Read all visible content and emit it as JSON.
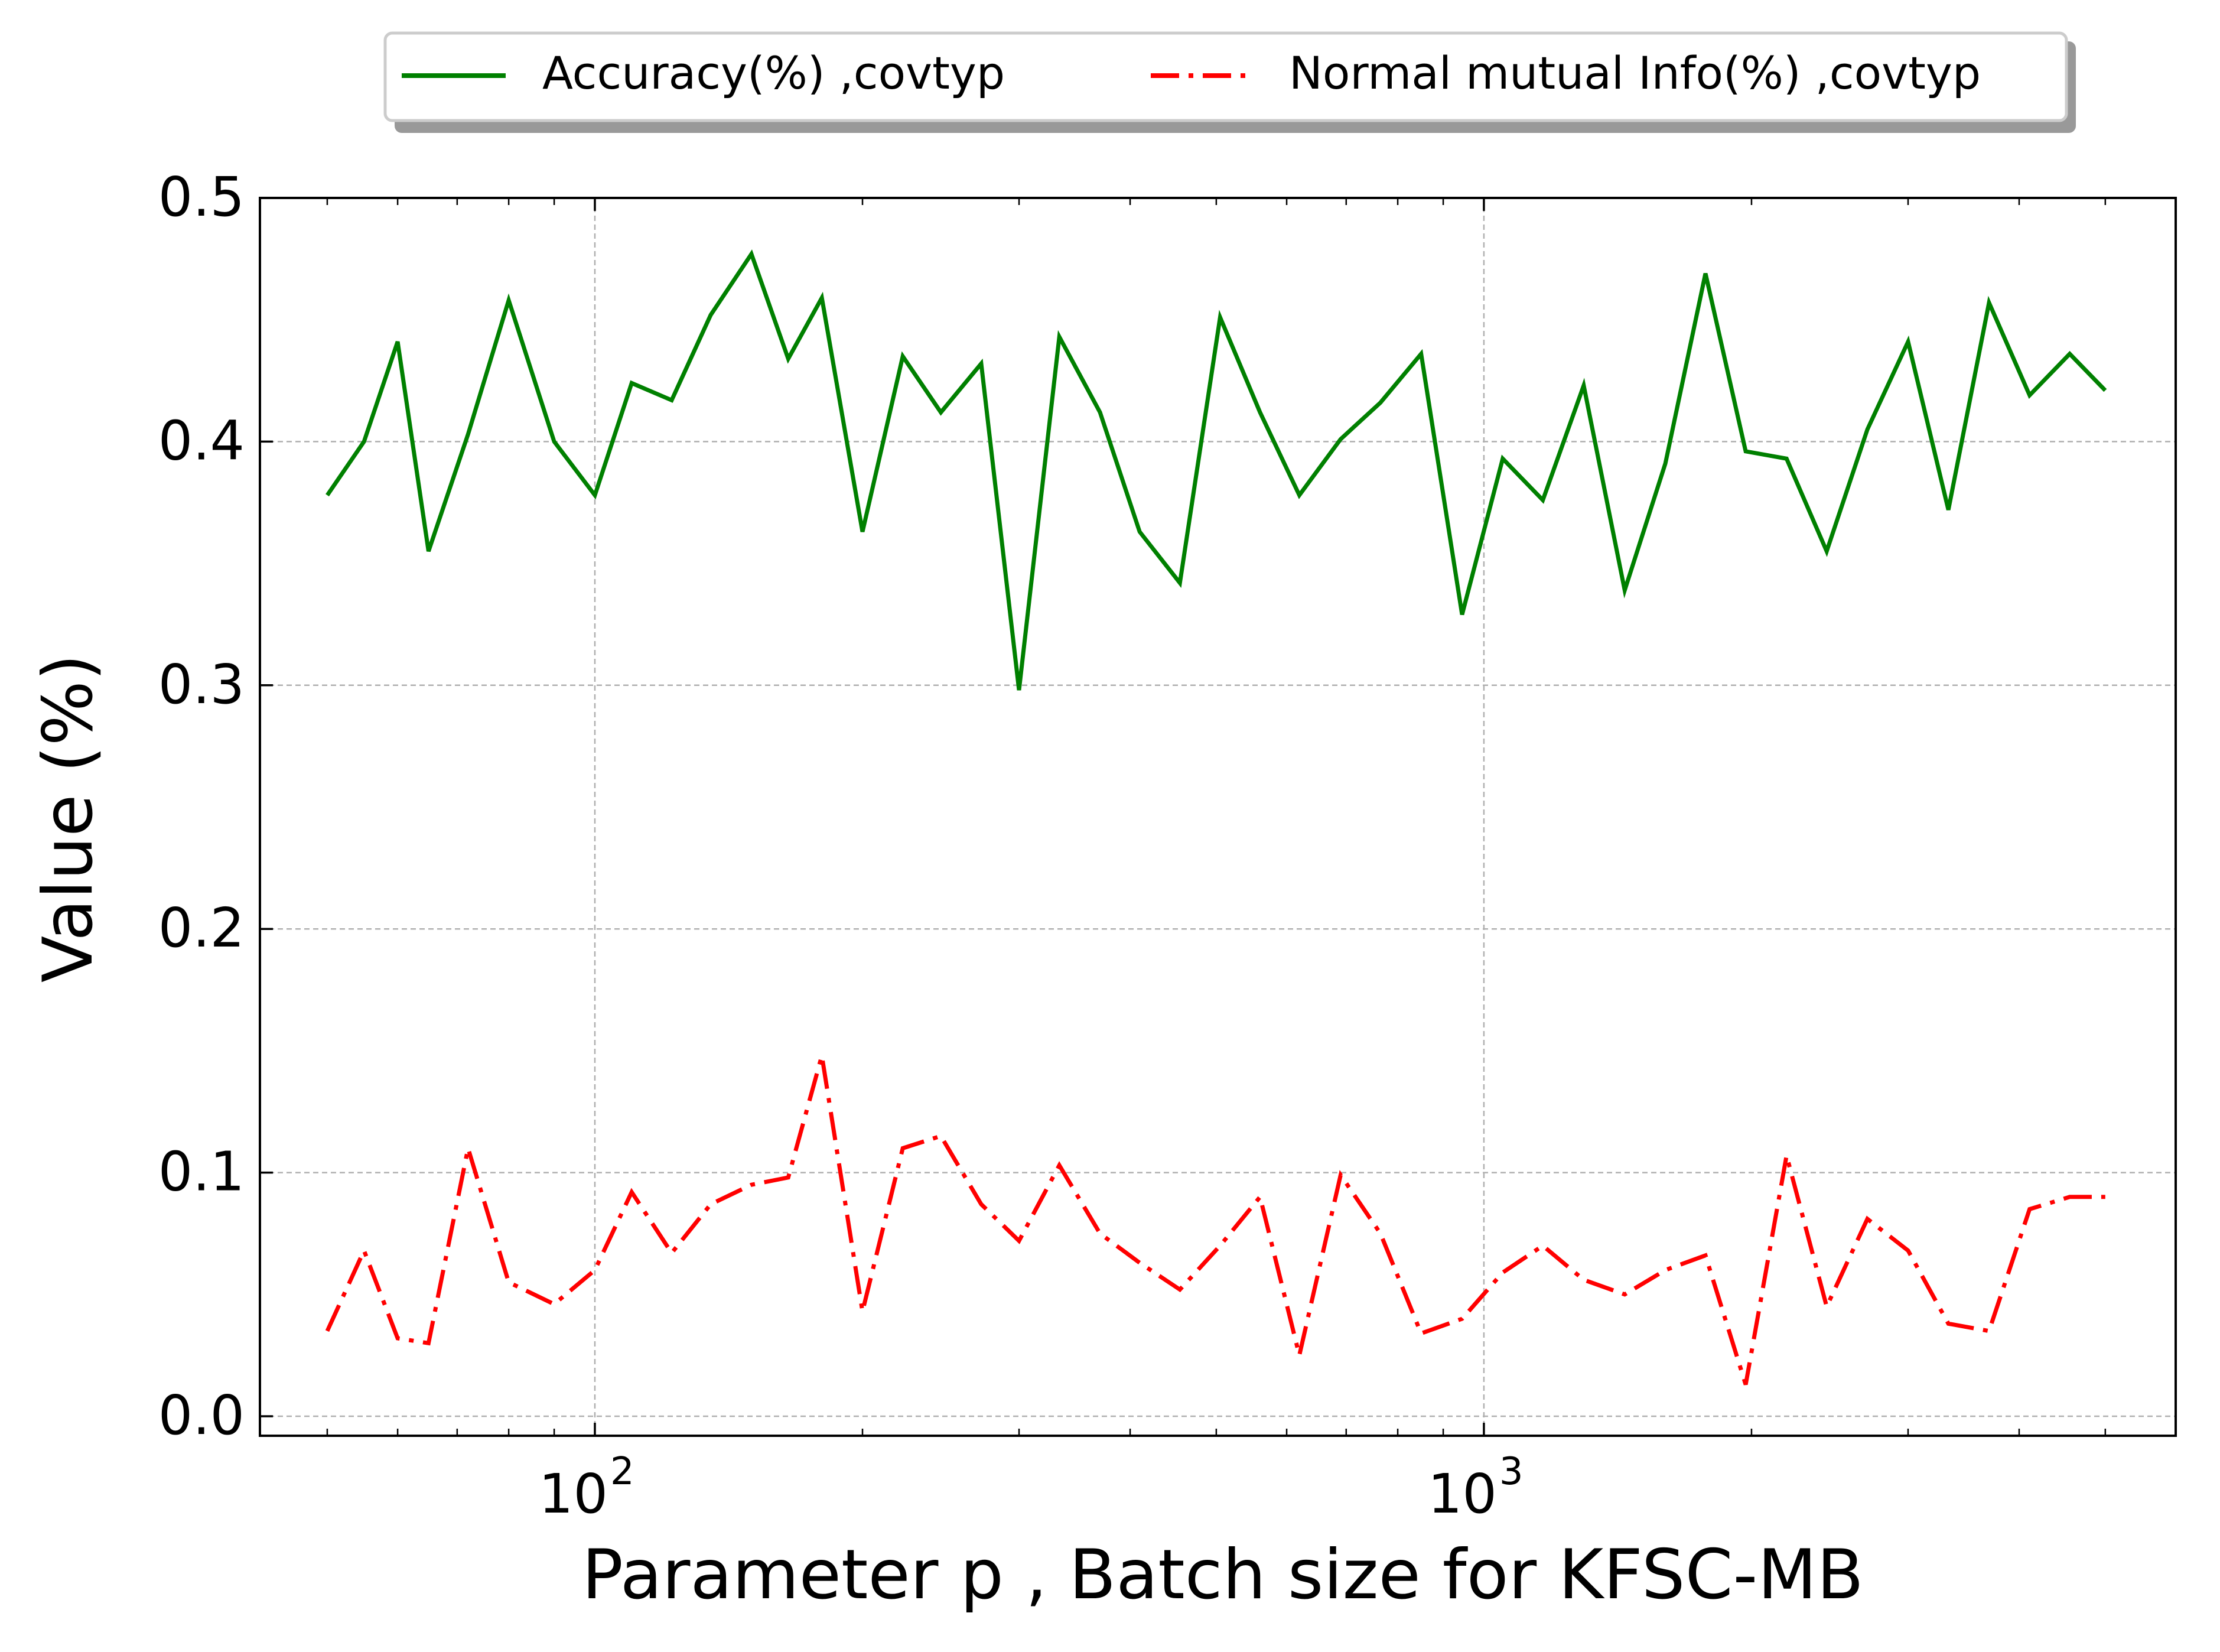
{
  "chart_data": {
    "type": "line",
    "title": "",
    "xlabel": "Parameter p , Batch size for KFSC-MB",
    "ylabel": "Value (%)",
    "x_scale": "log",
    "xlim": [
      42,
      6000
    ],
    "ylim": [
      -0.008,
      0.5
    ],
    "grid": true,
    "legend_position": "top-center",
    "x_major_ticks": [
      {
        "value": 100,
        "label": "10",
        "exp": "2"
      },
      {
        "value": 1000,
        "label": "10",
        "exp": "3"
      }
    ],
    "x_minor_ticks": [
      50,
      60,
      70,
      80,
      90,
      200,
      300,
      400,
      500,
      600,
      700,
      800,
      900,
      2000,
      3000,
      4000,
      5000
    ],
    "y_ticks": [
      {
        "value": 0.0,
        "label": "0.0"
      },
      {
        "value": 0.1,
        "label": "0.1"
      },
      {
        "value": 0.2,
        "label": "0.2"
      },
      {
        "value": 0.3,
        "label": "0.3"
      },
      {
        "value": 0.4,
        "label": "0.4"
      },
      {
        "value": 0.5,
        "label": "0.5"
      }
    ],
    "x": [
      50,
      55,
      60,
      65,
      72,
      80,
      90,
      100,
      110,
      122,
      135,
      150,
      165,
      180,
      200,
      222,
      245,
      272,
      300,
      333,
      370,
      410,
      455,
      505,
      560,
      620,
      690,
      765,
      850,
      945,
      1050,
      1165,
      1295,
      1440,
      1600,
      1775,
      1970,
      2190,
      2430,
      2700,
      3000,
      3330,
      3700,
      4110,
      4560,
      5000
    ],
    "series": [
      {
        "name": "Accuracy(%) ,covtyp",
        "color": "#008000",
        "dash": "solid",
        "values": [
          0.378,
          0.4,
          0.441,
          0.355,
          0.403,
          0.458,
          0.4,
          0.378,
          0.424,
          0.417,
          0.452,
          0.477,
          0.434,
          0.459,
          0.363,
          0.435,
          0.412,
          0.432,
          0.298,
          0.443,
          0.412,
          0.363,
          0.342,
          0.451,
          0.412,
          0.378,
          0.401,
          0.416,
          0.436,
          0.329,
          0.393,
          0.376,
          0.423,
          0.339,
          0.391,
          0.469,
          0.396,
          0.393,
          0.355,
          0.405,
          0.441,
          0.372,
          0.457,
          0.419,
          0.436,
          0.421
        ]
      },
      {
        "name": "Normal mutual Info(%) ,covtyp",
        "color": "#ff0000",
        "dash": "dashdot",
        "values": [
          0.035,
          0.068,
          0.032,
          0.03,
          0.11,
          0.055,
          0.046,
          0.06,
          0.092,
          0.067,
          0.087,
          0.095,
          0.098,
          0.148,
          0.043,
          0.11,
          0.115,
          0.087,
          0.072,
          0.103,
          0.075,
          0.063,
          0.052,
          0.07,
          0.09,
          0.025,
          0.099,
          0.075,
          0.034,
          0.04,
          0.059,
          0.07,
          0.056,
          0.05,
          0.06,
          0.066,
          0.013,
          0.107,
          0.045,
          0.081,
          0.068,
          0.038,
          0.035,
          0.085,
          0.09,
          0.09
        ]
      }
    ]
  }
}
